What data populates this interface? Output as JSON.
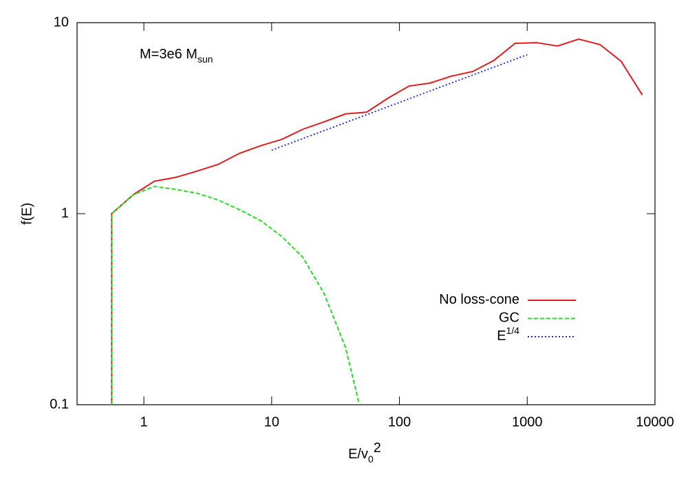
{
  "chart_data": {
    "type": "line",
    "annotation": {
      "text": "M=3e6 M",
      "subscript": "sun"
    },
    "xlabel": {
      "text": "E/v",
      "subscript": "0",
      "superscript": "2"
    },
    "ylabel": "f(E)",
    "log_x": true,
    "log_y": true,
    "xlim": [
      0.3,
      10000
    ],
    "ylim": [
      0.1,
      10
    ],
    "xticks": [
      1,
      10,
      100,
      1000,
      10000
    ],
    "yticks": [
      0.1,
      1,
      10
    ],
    "legend": "right",
    "series": [
      {
        "name": "No loss-cone",
        "color": "#e41a1c",
        "dash": "solid",
        "x": [
          0.56,
          0.56,
          0.83,
          1.21,
          1.78,
          2.6,
          3.8,
          5.6,
          8.2,
          12,
          17.6,
          25.8,
          37.8,
          55.4,
          81,
          119,
          174,
          255,
          374,
          548,
          804,
          1178,
          1726,
          2530,
          3707,
          5430,
          7960
        ],
        "values": [
          0.1,
          1.0,
          1.26,
          1.48,
          1.55,
          1.67,
          1.81,
          2.07,
          2.27,
          2.45,
          2.77,
          3.03,
          3.33,
          3.4,
          4.02,
          4.66,
          4.83,
          5.25,
          5.55,
          6.34,
          7.8,
          7.86,
          7.55,
          8.2,
          7.68,
          6.28,
          4.18
        ]
      },
      {
        "name": "GC",
        "color": "#22dd22",
        "dash": "dashed",
        "x": [
          0.56,
          0.56,
          0.83,
          1.21,
          1.78,
          2.6,
          3.8,
          5.6,
          8.2,
          12,
          17.6,
          25.8,
          37.8,
          48.6
        ],
        "values": [
          0.1,
          1.0,
          1.26,
          1.39,
          1.34,
          1.28,
          1.18,
          1.05,
          0.92,
          0.76,
          0.59,
          0.38,
          0.2,
          0.1
        ]
      },
      {
        "name": "E",
        "name_superscript": "1/4",
        "color": "#1f2fe0",
        "dash": "dotted",
        "x": [
          10,
          1000
        ],
        "values": [
          2.15,
          6.8
        ]
      }
    ]
  }
}
